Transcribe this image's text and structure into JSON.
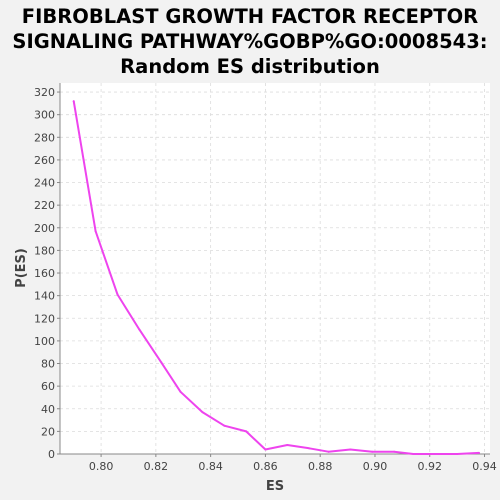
{
  "chart_data": {
    "type": "line",
    "title_lines": [
      "FIBROBLAST GROWTH FACTOR RECEPTOR",
      "SIGNALING PATHWAY%GOBP%GO:0008543:",
      "Random ES distribution"
    ],
    "xlabel": "ES",
    "ylabel": "P(ES)",
    "xlim": [
      0.785,
      0.942
    ],
    "ylim": [
      0,
      328
    ],
    "x_ticks": [
      0.8,
      0.82,
      0.84,
      0.86,
      0.88,
      0.9,
      0.92,
      0.94
    ],
    "x_tick_labels": [
      "0.80",
      "0.82",
      "0.84",
      "0.86",
      "0.88",
      "0.90",
      "0.92",
      "0.94"
    ],
    "y_ticks": [
      0,
      20,
      40,
      60,
      80,
      100,
      120,
      140,
      160,
      180,
      200,
      220,
      240,
      260,
      280,
      300,
      320
    ],
    "y_tick_labels": [
      "0",
      "20",
      "40",
      "60",
      "80",
      "100",
      "120",
      "140",
      "160",
      "180",
      "200",
      "220",
      "240",
      "260",
      "280",
      "300",
      "320"
    ],
    "grid": true,
    "series": [
      {
        "color": "#ee44ee",
        "x": [
          0.79,
          0.798,
          0.806,
          0.814,
          0.822,
          0.829,
          0.837,
          0.845,
          0.853,
          0.86,
          0.868,
          0.876,
          0.883,
          0.891,
          0.899,
          0.907,
          0.914,
          0.922,
          0.93,
          0.938
        ],
        "y": [
          312,
          197,
          141,
          110,
          81,
          55,
          37,
          25,
          20,
          4,
          8,
          5,
          2,
          4,
          2,
          2,
          0,
          0,
          0,
          1
        ]
      }
    ]
  }
}
